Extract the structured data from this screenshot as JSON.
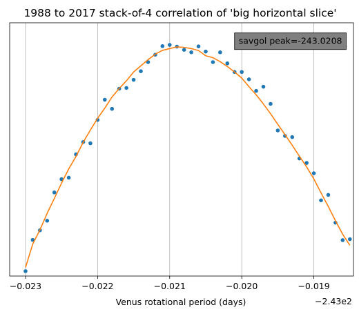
{
  "chart_data": {
    "type": "scatter",
    "title": "1988 to 2017 stack-of-4 correlation of 'big horizontal slice'",
    "xlabel": "Venus rotational period (days)",
    "ylabel": "",
    "x_offset_label": "−2.43e2",
    "x_ticks": [
      {
        "value": -0.023,
        "label": "−0.023"
      },
      {
        "value": -0.022,
        "label": "−0.022"
      },
      {
        "value": -0.021,
        "label": "−0.021"
      },
      {
        "value": -0.02,
        "label": "−0.020"
      },
      {
        "value": -0.019,
        "label": "−0.019"
      }
    ],
    "xlim": [
      -0.02322,
      -0.01845
    ],
    "ylim": [
      -0.02,
      1.01
    ],
    "y_ticks_shown": false,
    "grid": "x-major-vertical",
    "annotation": {
      "text": "savgol peak=-243.0208",
      "anchor_x": -0.0201,
      "anchor_y": 0.935
    },
    "series": [
      {
        "kind": "points",
        "color": "#1f77b4",
        "x": [
          -0.023,
          -0.0229,
          -0.0228,
          -0.0227,
          -0.0226,
          -0.0225,
          -0.0224,
          -0.0223,
          -0.0222,
          -0.0221,
          -0.022,
          -0.0219,
          -0.0218,
          -0.0217,
          -0.0216,
          -0.0215,
          -0.0214,
          -0.0213,
          -0.0212,
          -0.0211,
          -0.021,
          -0.0209,
          -0.0208,
          -0.0207,
          -0.0206,
          -0.0205,
          -0.0204,
          -0.0203,
          -0.0202,
          -0.0201,
          -0.02,
          -0.0199,
          -0.0198,
          -0.0197,
          -0.0196,
          -0.0195,
          -0.0194,
          -0.0193,
          -0.0192,
          -0.0191,
          -0.019,
          -0.0189,
          -0.0188,
          -0.0187,
          -0.0186,
          -0.0185
        ],
        "y": [
          0.0,
          0.127,
          0.166,
          0.205,
          0.32,
          0.374,
          0.38,
          0.475,
          0.525,
          0.52,
          0.615,
          0.697,
          0.66,
          0.742,
          0.745,
          0.778,
          0.813,
          0.85,
          0.88,
          0.915,
          0.92,
          0.913,
          0.9,
          0.89,
          0.914,
          0.893,
          0.85,
          0.89,
          0.845,
          0.81,
          0.81,
          0.78,
          0.733,
          0.75,
          0.68,
          0.572,
          0.55,
          0.545,
          0.458,
          0.44,
          0.398,
          0.288,
          0.31,
          0.197,
          0.126,
          0.13
        ]
      },
      {
        "kind": "line",
        "color": "#ff7f0e",
        "x": [
          -0.023,
          -0.0229,
          -0.0228,
          -0.0227,
          -0.0226,
          -0.0225,
          -0.0224,
          -0.0223,
          -0.0222,
          -0.0221,
          -0.022,
          -0.0219,
          -0.0218,
          -0.0217,
          -0.0216,
          -0.0215,
          -0.0214,
          -0.0213,
          -0.0212,
          -0.0211,
          -0.021,
          -0.0209,
          -0.0208,
          -0.0207,
          -0.0206,
          -0.0205,
          -0.0204,
          -0.0203,
          -0.0202,
          -0.0201,
          -0.02,
          -0.0199,
          -0.0198,
          -0.0197,
          -0.0196,
          -0.0195,
          -0.0194,
          -0.0193,
          -0.0192,
          -0.0191,
          -0.019,
          -0.0189,
          -0.0188,
          -0.0187,
          -0.0186,
          -0.0185
        ],
        "y": [
          0.015,
          0.11,
          0.168,
          0.235,
          0.296,
          0.358,
          0.416,
          0.466,
          0.524,
          0.574,
          0.621,
          0.663,
          0.708,
          0.743,
          0.774,
          0.81,
          0.835,
          0.86,
          0.882,
          0.898,
          0.905,
          0.912,
          0.91,
          0.905,
          0.897,
          0.876,
          0.868,
          0.852,
          0.832,
          0.81,
          0.785,
          0.75,
          0.717,
          0.68,
          0.64,
          0.597,
          0.555,
          0.512,
          0.467,
          0.424,
          0.375,
          0.318,
          0.263,
          0.205,
          0.15,
          0.105
        ]
      }
    ]
  }
}
